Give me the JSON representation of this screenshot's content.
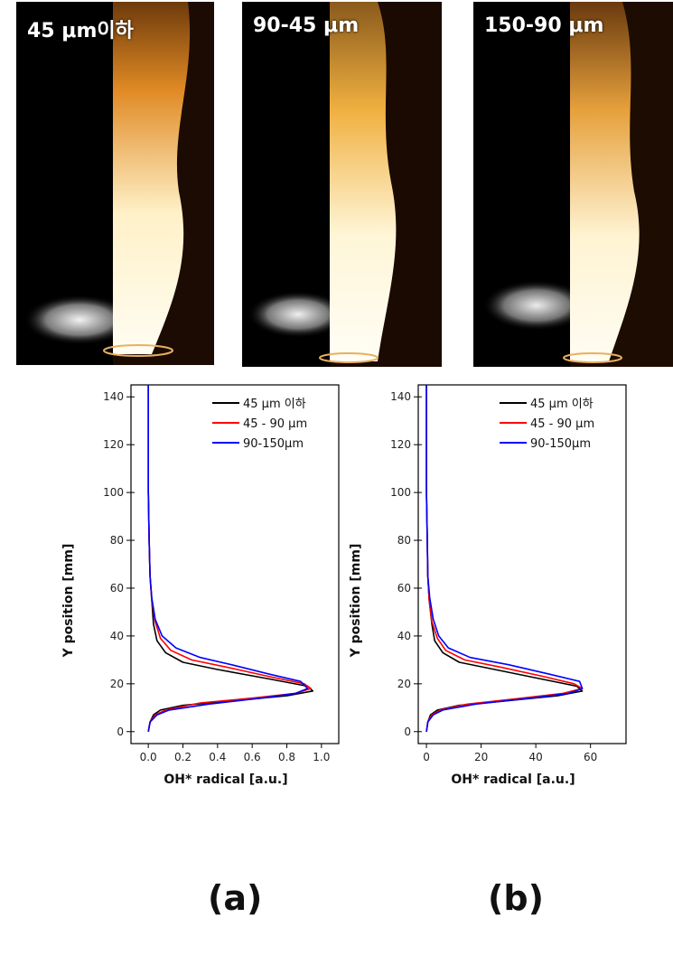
{
  "photos": [
    {
      "label": "45 μm이하"
    },
    {
      "label": "90-45 μm"
    },
    {
      "label": "150-90 μm"
    }
  ],
  "panel_labels": [
    "(a)",
    "(b)"
  ],
  "colors": {
    "series1": "#000000",
    "series2": "#ff0000",
    "series3": "#0000ff"
  },
  "chart_data": [
    {
      "type": "line",
      "panel": "(a)",
      "xlabel": "OH* radical [a.u.]",
      "ylabel": "Y position [mm]",
      "xlim": [
        -0.1,
        1.1
      ],
      "ylim": [
        -5,
        145
      ],
      "xticks": [
        0.0,
        0.2,
        0.4,
        0.6,
        0.8,
        1.0
      ],
      "xtick_labels": [
        "0.0",
        "0.2",
        "0.4",
        "0.6",
        "0.8",
        "1.0"
      ],
      "yticks": [
        0,
        20,
        40,
        60,
        80,
        100,
        120,
        140
      ],
      "legend": "top-right",
      "series": [
        {
          "name": "45 μm 이하",
          "color": "#000000",
          "points": [
            [
              0.0,
              0
            ],
            [
              0.01,
              4
            ],
            [
              0.03,
              7
            ],
            [
              0.07,
              9
            ],
            [
              0.2,
              11
            ],
            [
              0.5,
              13
            ],
            [
              0.8,
              15
            ],
            [
              0.95,
              17
            ],
            [
              0.92,
              19
            ],
            [
              0.7,
              22
            ],
            [
              0.4,
              26
            ],
            [
              0.2,
              29
            ],
            [
              0.1,
              33
            ],
            [
              0.05,
              38
            ],
            [
              0.03,
              45
            ],
            [
              0.02,
              55
            ],
            [
              0.01,
              65
            ],
            [
              0.005,
              80
            ],
            [
              0.0,
              100
            ],
            [
              0.0,
              120
            ],
            [
              0.0,
              145
            ]
          ]
        },
        {
          "name": "45 - 90 μm",
          "color": "#ff0000",
          "points": [
            [
              0.0,
              0
            ],
            [
              0.01,
              4
            ],
            [
              0.04,
              7
            ],
            [
              0.1,
              9
            ],
            [
              0.3,
              12
            ],
            [
              0.6,
              14
            ],
            [
              0.85,
              16
            ],
            [
              0.94,
              18
            ],
            [
              0.9,
              20
            ],
            [
              0.7,
              23
            ],
            [
              0.45,
              27
            ],
            [
              0.25,
              30
            ],
            [
              0.13,
              34
            ],
            [
              0.07,
              39
            ],
            [
              0.04,
              46
            ],
            [
              0.02,
              55
            ],
            [
              0.01,
              65
            ],
            [
              0.005,
              80
            ],
            [
              0.0,
              100
            ],
            [
              0.0,
              120
            ],
            [
              0.0,
              145
            ]
          ]
        },
        {
          "name": "90-150μm",
          "color": "#0000ff",
          "points": [
            [
              0.0,
              0
            ],
            [
              0.01,
              4
            ],
            [
              0.05,
              7
            ],
            [
              0.12,
              9
            ],
            [
              0.35,
              11.5
            ],
            [
              0.65,
              14
            ],
            [
              0.85,
              16
            ],
            [
              0.92,
              18
            ],
            [
              0.88,
              21
            ],
            [
              0.7,
              24
            ],
            [
              0.48,
              28
            ],
            [
              0.3,
              31
            ],
            [
              0.16,
              35
            ],
            [
              0.08,
              40
            ],
            [
              0.04,
              47
            ],
            [
              0.02,
              56
            ],
            [
              0.01,
              65
            ],
            [
              0.005,
              80
            ],
            [
              0.0,
              100
            ],
            [
              0.0,
              120
            ],
            [
              0.0,
              145
            ]
          ]
        }
      ]
    },
    {
      "type": "line",
      "panel": "(b)",
      "xlabel": "OH* radical [a.u.]",
      "ylabel": "Y position [mm]",
      "xlim": [
        -3,
        73
      ],
      "ylim": [
        -5,
        145
      ],
      "xticks": [
        0,
        20,
        40,
        60
      ],
      "xtick_labels": [
        "0",
        "20",
        "40",
        "60"
      ],
      "yticks": [
        0,
        20,
        40,
        60,
        80,
        100,
        120,
        140
      ],
      "legend": "top-right",
      "series": [
        {
          "name": "45 μm 이하",
          "color": "#000000",
          "points": [
            [
              0,
              0
            ],
            [
              0.5,
              4
            ],
            [
              1.5,
              7
            ],
            [
              4,
              9
            ],
            [
              12,
              11
            ],
            [
              30,
              13
            ],
            [
              48,
              15
            ],
            [
              57,
              17
            ],
            [
              55,
              19
            ],
            [
              42,
              22
            ],
            [
              25,
              26
            ],
            [
              12,
              29
            ],
            [
              6,
              33
            ],
            [
              3,
              38
            ],
            [
              2,
              45
            ],
            [
              1,
              55
            ],
            [
              0.5,
              65
            ],
            [
              0.3,
              80
            ],
            [
              0,
              100
            ],
            [
              0,
              120
            ],
            [
              0,
              145
            ]
          ]
        },
        {
          "name": "45 - 90 μm",
          "color": "#ff0000",
          "points": [
            [
              0,
              0
            ],
            [
              0.5,
              4
            ],
            [
              2,
              7
            ],
            [
              5,
              9
            ],
            [
              15,
              11.5
            ],
            [
              35,
              14
            ],
            [
              50,
              16
            ],
            [
              57,
              18
            ],
            [
              54,
              20
            ],
            [
              43,
              23
            ],
            [
              27,
              27
            ],
            [
              14,
              30
            ],
            [
              7,
              34
            ],
            [
              4,
              39
            ],
            [
              2,
              46
            ],
            [
              1,
              55
            ],
            [
              0.5,
              65
            ],
            [
              0.3,
              80
            ],
            [
              0,
              100
            ],
            [
              0,
              120
            ],
            [
              0,
              145
            ]
          ]
        },
        {
          "name": "90-150μm",
          "color": "#0000ff",
          "points": [
            [
              0,
              0
            ],
            [
              0.5,
              4
            ],
            [
              2.5,
              7
            ],
            [
              6,
              9
            ],
            [
              18,
              11.5
            ],
            [
              38,
              14
            ],
            [
              52,
              16
            ],
            [
              57,
              18
            ],
            [
              56,
              21
            ],
            [
              45,
              24
            ],
            [
              30,
              28
            ],
            [
              16,
              31
            ],
            [
              8,
              35
            ],
            [
              4.5,
              40
            ],
            [
              2.5,
              47
            ],
            [
              1.2,
              56
            ],
            [
              0.5,
              65
            ],
            [
              0.3,
              80
            ],
            [
              0,
              100
            ],
            [
              0,
              120
            ],
            [
              0,
              145
            ]
          ]
        }
      ]
    }
  ]
}
